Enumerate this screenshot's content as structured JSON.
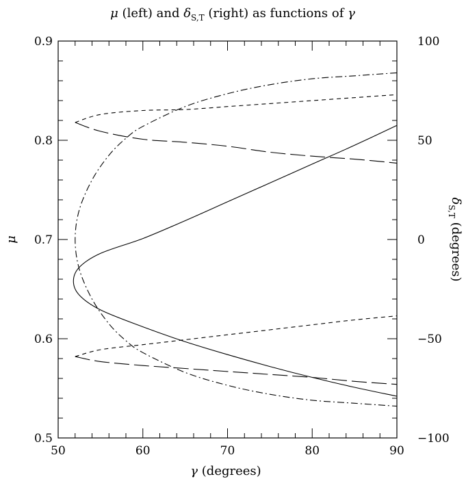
{
  "chart_data": {
    "type": "line",
    "title": "μ (left) and δ_{S,T} (right) as functions of γ",
    "title_parts": {
      "mu": "μ",
      "left": " (left) and ",
      "delta": "δ",
      "sub": "S,T",
      "right": " (right) as functions of ",
      "gamma": "γ"
    },
    "xlabel": "γ (degrees)",
    "xlabel_parts": {
      "symbol": "γ",
      "rest": " (degrees)"
    },
    "ylabel_left": "μ",
    "ylabel_right": "δ_{S,T} (degrees)",
    "ylabel_right_parts": {
      "symbol": "δ",
      "sub": "S,T",
      "rest": " (degrees)"
    },
    "xlim": [
      50,
      90
    ],
    "ylim_left": [
      0.5,
      0.9
    ],
    "ylim_right": [
      -100,
      100
    ],
    "x_ticks": [
      "50",
      "60",
      "70",
      "80",
      "90"
    ],
    "y_left_ticks": [
      "0.5",
      "0.6",
      "0.7",
      "0.8",
      "0.9"
    ],
    "y_right_ticks": [
      "−100",
      "−50",
      "0",
      "50",
      "100"
    ],
    "series": [
      {
        "style": "solid",
        "axis": "left",
        "upper": [
          [
            51.8,
            0.658
          ],
          [
            52.5,
            0.672
          ],
          [
            55,
            0.686
          ],
          [
            60,
            0.701
          ],
          [
            65,
            0.719
          ],
          [
            70,
            0.738
          ],
          [
            75,
            0.757
          ],
          [
            80,
            0.776
          ],
          [
            85,
            0.795
          ],
          [
            90,
            0.815
          ]
        ],
        "lower": [
          [
            51.8,
            0.658
          ],
          [
            52.5,
            0.644
          ],
          [
            55,
            0.629
          ],
          [
            60,
            0.612
          ],
          [
            65,
            0.597
          ],
          [
            70,
            0.584
          ],
          [
            75,
            0.572
          ],
          [
            80,
            0.561
          ],
          [
            85,
            0.551
          ],
          [
            90,
            0.542
          ]
        ]
      },
      {
        "style": "dashdot",
        "axis": "left",
        "upper": [
          [
            52.0,
            0.7
          ],
          [
            52.5,
            0.73
          ],
          [
            54,
            0.76
          ],
          [
            56,
            0.785
          ],
          [
            58,
            0.802
          ],
          [
            60,
            0.814
          ],
          [
            65,
            0.834
          ],
          [
            70,
            0.847
          ],
          [
            75,
            0.856
          ],
          [
            80,
            0.862
          ],
          [
            85,
            0.865
          ],
          [
            90,
            0.868
          ]
        ],
        "lower": [
          [
            52.0,
            0.7
          ],
          [
            52.5,
            0.67
          ],
          [
            54,
            0.64
          ],
          [
            56,
            0.615
          ],
          [
            58,
            0.598
          ],
          [
            60,
            0.586
          ],
          [
            65,
            0.566
          ],
          [
            70,
            0.553
          ],
          [
            75,
            0.544
          ],
          [
            80,
            0.538
          ],
          [
            85,
            0.535
          ],
          [
            90,
            0.532
          ]
        ]
      },
      {
        "style": "longdash",
        "axis": "left",
        "points": [
          [
            52,
            0.818
          ],
          [
            55,
            0.809
          ],
          [
            60,
            0.801
          ],
          [
            65,
            0.798
          ],
          [
            70,
            0.794
          ],
          [
            75,
            0.788
          ],
          [
            80,
            0.784
          ],
          [
            85,
            0.781
          ],
          [
            90,
            0.777
          ]
        ]
      },
      {
        "style": "shortdash",
        "axis": "left",
        "points": [
          [
            52,
            0.818
          ],
          [
            55,
            0.826
          ],
          [
            60,
            0.83
          ],
          [
            65,
            0.831
          ],
          [
            70,
            0.834
          ],
          [
            75,
            0.837
          ],
          [
            80,
            0.84
          ],
          [
            85,
            0.843
          ],
          [
            90,
            0.846
          ]
        ]
      },
      {
        "style": "longdash",
        "axis": "left",
        "points": [
          [
            52,
            0.582
          ],
          [
            55,
            0.577
          ],
          [
            60,
            0.573
          ],
          [
            65,
            0.57
          ],
          [
            70,
            0.567
          ],
          [
            75,
            0.564
          ],
          [
            80,
            0.561
          ],
          [
            85,
            0.557
          ],
          [
            90,
            0.554
          ]
        ]
      },
      {
        "style": "shortdash",
        "axis": "left",
        "points": [
          [
            52,
            0.582
          ],
          [
            55,
            0.589
          ],
          [
            60,
            0.594
          ],
          [
            65,
            0.599
          ],
          [
            70,
            0.604
          ],
          [
            75,
            0.609
          ],
          [
            80,
            0.614
          ],
          [
            85,
            0.619
          ],
          [
            90,
            0.623
          ]
        ]
      }
    ],
    "grid": false,
    "legend": "none"
  }
}
